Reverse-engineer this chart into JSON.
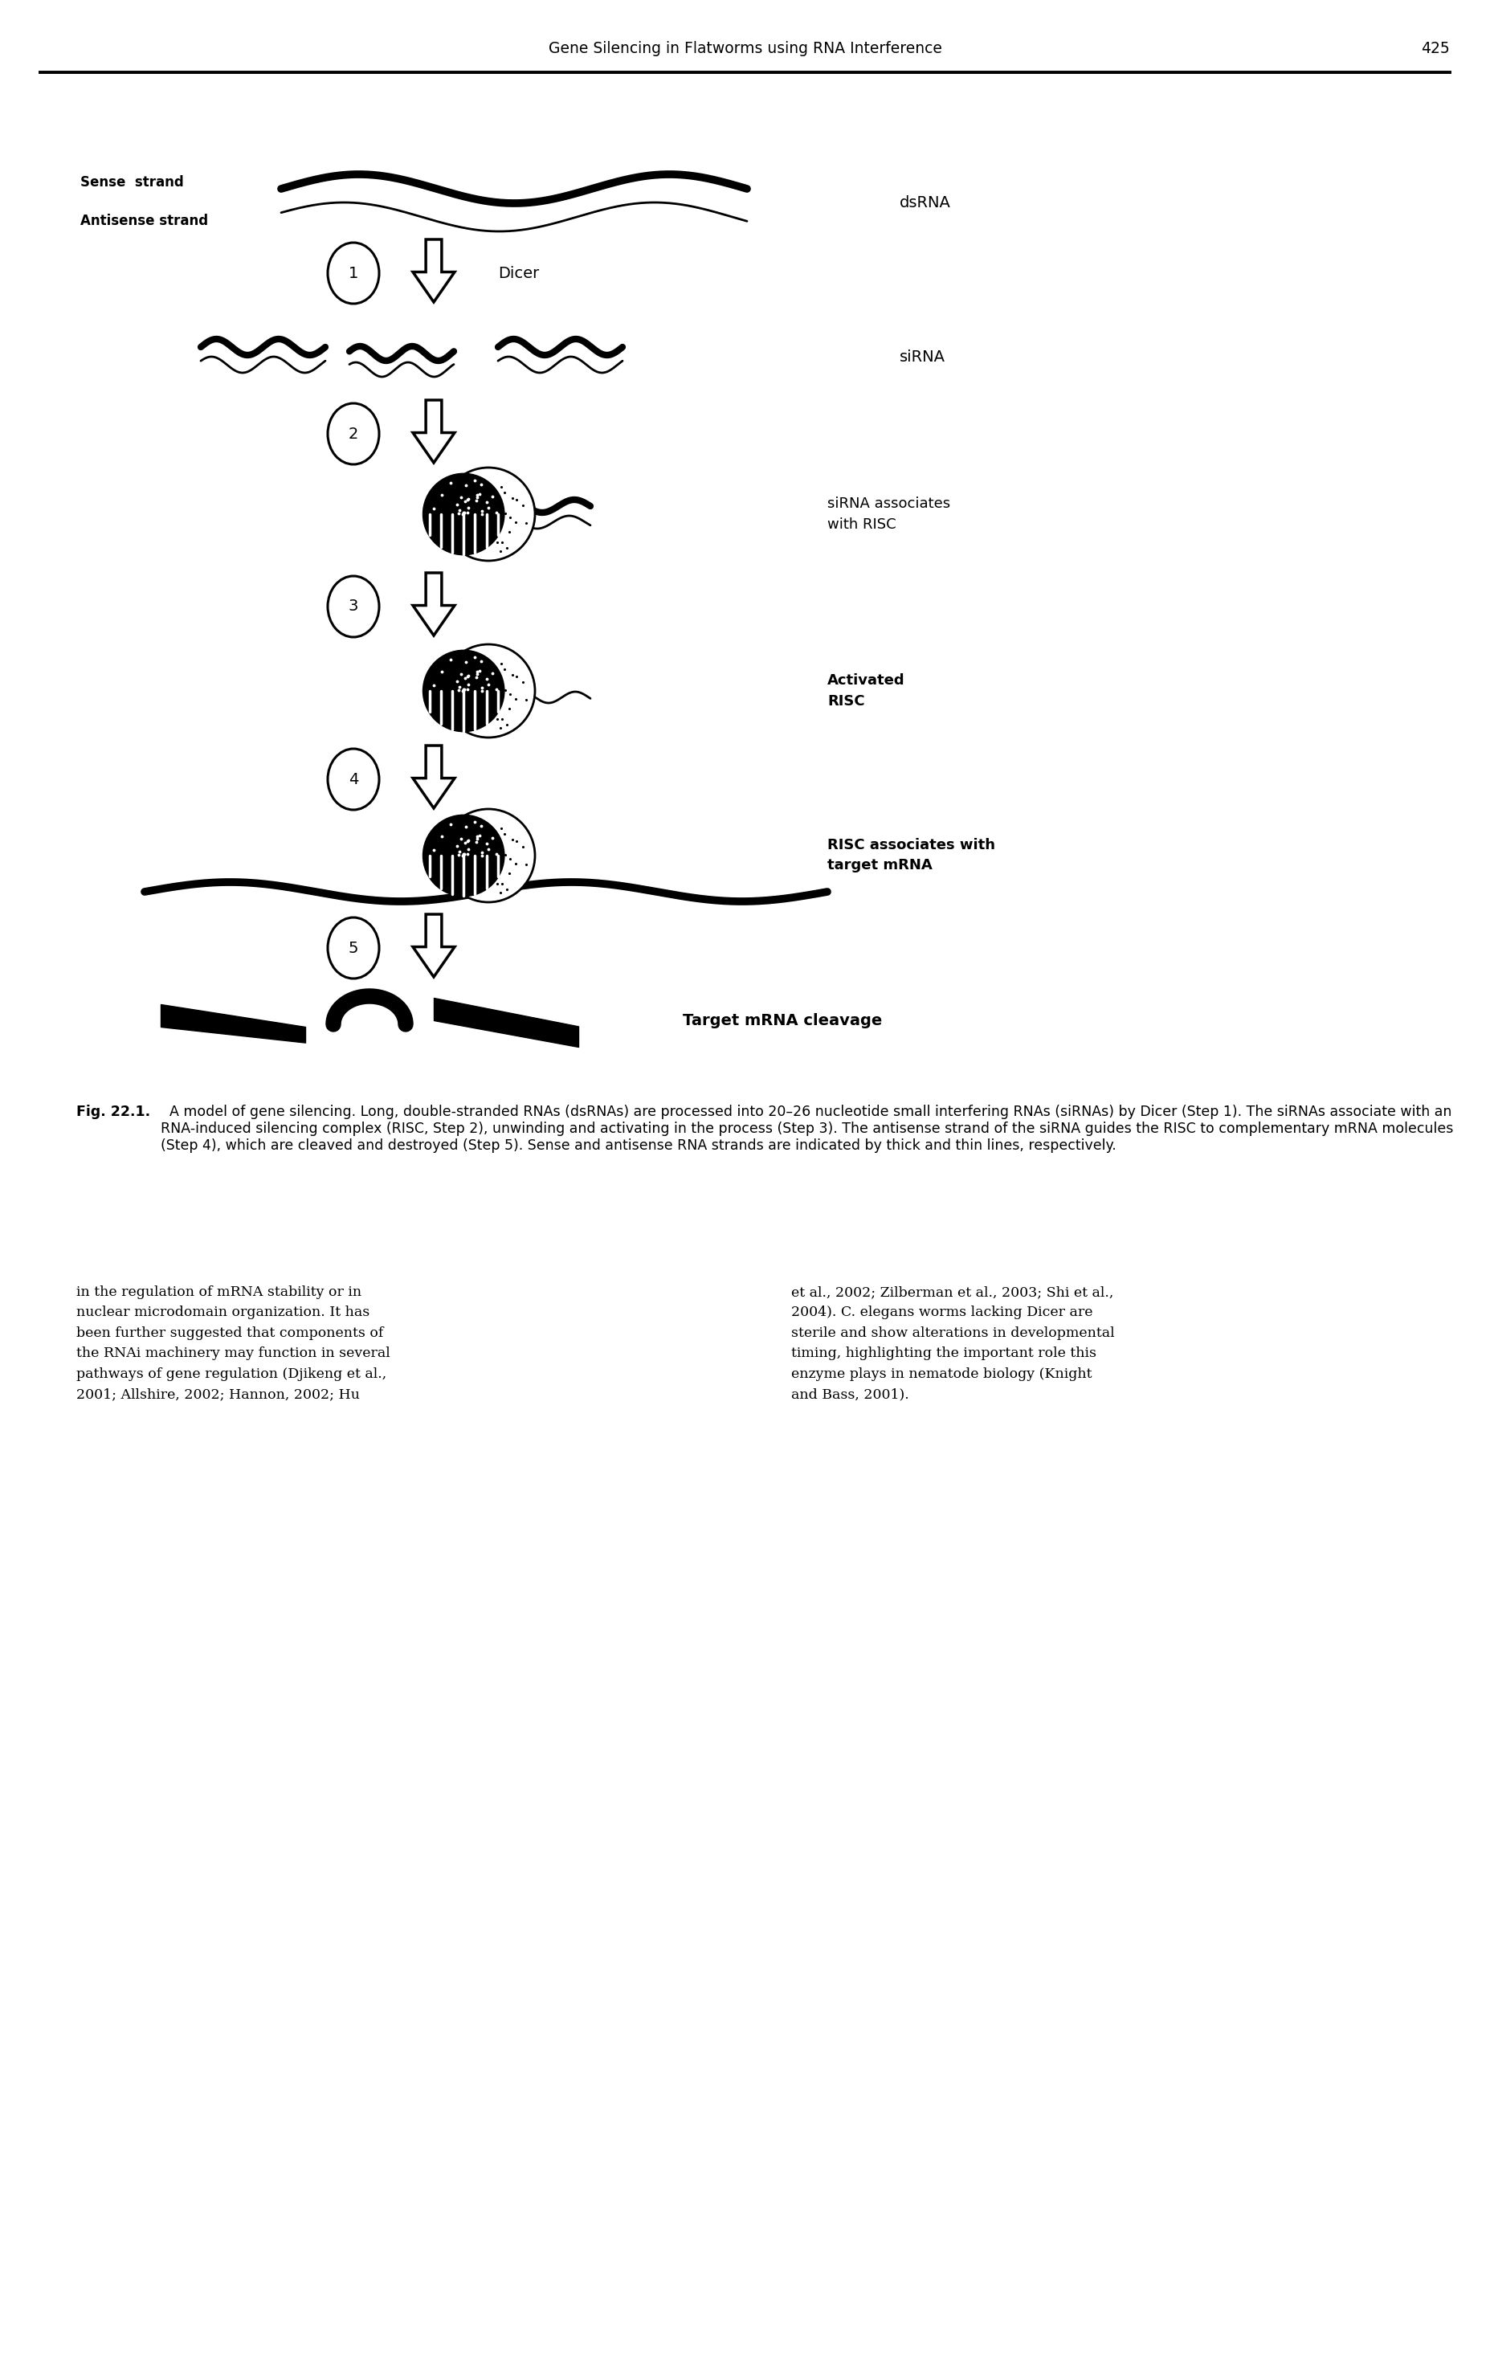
{
  "bg_color": "#ffffff",
  "header_title": "Gene Silencing in Flatworms using RNA Interference",
  "page_number": "425",
  "sense_label": "Sense  strand",
  "antisense_label": "Antisense strand",
  "dsrna_label": "dsRNA",
  "sirna_label": "siRNA",
  "step1_label": "Dicer",
  "step2_label": "siRNA associates\nwith RISC",
  "step3_label": "Activated\nRISC",
  "step4_label": "RISC associates with\ntarget mRNA",
  "step5_label": "Target mRNA cleavage",
  "caption_bold": "Fig. 22.1.",
  "caption_rest": "  A model of gene silencing. Long, double-stranded RNAs (dsRNAs) are processed into 20–26 nucleotide small interfering RNAs (siRNAs) by Dicer (Step 1). The siRNAs associate with an RNA-induced silencing complex (RISC, Step 2), unwinding and activating in the process (Step 3). The antisense strand of the siRNA guides the RISC to complementary mRNA molecules (Step 4), which are cleaved and destroyed (Step 5). Sense and antisense RNA strands are indicated by thick and thin lines, respectively.",
  "body_left": "in the regulation of mRNA stability or in\nnuclear microdomain organization. It has\nbeen further suggested that components of\nthe RNAi machinery may function in several\npathways of gene regulation (Djikeng et al.,\n2001; Allshire, 2002; Hannon, 2002; Hu",
  "body_right_italic_word": "C. elegans",
  "body_right": "et al., 2002; Zilberman et al., 2003; Shi et al.,\n2004). C. elegans worms lacking Dicer are\nsterile and show alterations in developmental\ntiming, highlighting the important role this\nenzyme plays in nematode biology (Knight\nand Bass, 2001)."
}
